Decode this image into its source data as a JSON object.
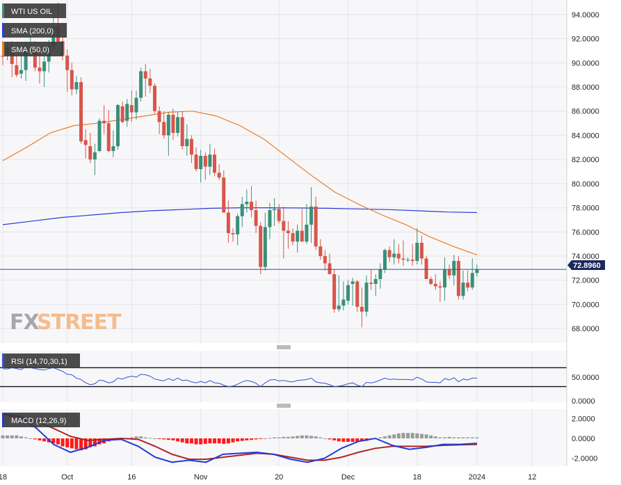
{
  "chart_data": [
    {
      "type": "candlestick",
      "title": "WTI US OIL",
      "legend": [
        "WTI US OIL",
        "SMA (200,0)",
        "SMA (50,0)"
      ],
      "watermark": {
        "fx": "FX",
        "street": "STREET"
      },
      "current_price": "72.8960",
      "ylim": [
        66.8,
        95.2
      ],
      "yticks": [
        "68.0000",
        "70.0000",
        "72.0000",
        "74.0000",
        "76.0000",
        "78.0000",
        "80.0000",
        "82.0000",
        "84.0000",
        "86.0000",
        "88.0000",
        "90.0000",
        "92.0000",
        "94.0000"
      ],
      "ytick_values": [
        68,
        70,
        72,
        74,
        76,
        78,
        80,
        82,
        84,
        86,
        88,
        90,
        92,
        94
      ],
      "x_labels": [
        "18",
        "Oct",
        "16",
        "Nov",
        "20",
        "Dec",
        "18",
        "2024",
        "12"
      ],
      "x_label_index": [
        0,
        14,
        28,
        43,
        60,
        75,
        90,
        103,
        115
      ],
      "ohlc": [
        [
          90.6,
          91.8,
          89.8,
          90.5
        ],
        [
          90.7,
          91.6,
          90.2,
          91.3
        ],
        [
          90.8,
          91.8,
          88.8,
          89.9
        ],
        [
          89.8,
          90.6,
          88.8,
          89.0
        ],
        [
          89.1,
          90.9,
          88.7,
          89.4
        ],
        [
          89.4,
          91.7,
          88.5,
          90.9
        ],
        [
          90.9,
          92.2,
          90.6,
          91.0
        ],
        [
          91.0,
          91.8,
          89.3,
          89.6
        ],
        [
          89.6,
          90.8,
          88.3,
          89.3
        ],
        [
          89.3,
          90.6,
          88.0,
          90.1
        ],
        [
          90.1,
          91.9,
          89.2,
          91.4
        ],
        [
          91.4,
          93.9,
          91.0,
          93.0
        ],
        [
          93.0,
          95.0,
          91.6,
          91.7
        ],
        [
          91.8,
          92.2,
          90.2,
          90.6
        ],
        [
          90.6,
          91.1,
          87.6,
          89.4
        ],
        [
          89.4,
          90.0,
          87.3,
          87.8
        ],
        [
          87.8,
          88.9,
          87.4,
          88.4
        ],
        [
          88.4,
          88.8,
          83.3,
          83.5
        ],
        [
          83.6,
          84.5,
          82.1,
          83.2
        ],
        [
          83.1,
          84.2,
          81.7,
          82.0
        ],
        [
          82.0,
          83.3,
          80.7,
          82.6
        ],
        [
          82.7,
          85.4,
          82.6,
          85.2
        ],
        [
          85.2,
          86.5,
          84.1,
          85.0
        ],
        [
          85.0,
          86.1,
          82.6,
          82.7
        ],
        [
          82.7,
          84.4,
          82.2,
          83.1
        ],
        [
          83.1,
          86.6,
          82.8,
          86.5
        ],
        [
          86.4,
          86.8,
          85.0,
          85.1
        ],
        [
          85.2,
          87.0,
          84.7,
          86.6
        ],
        [
          86.5,
          87.7,
          85.1,
          85.9
        ],
        [
          85.9,
          87.7,
          85.3,
          87.1
        ],
        [
          87.1,
          89.6,
          86.8,
          89.3
        ],
        [
          89.3,
          89.9,
          87.2,
          88.7
        ],
        [
          88.7,
          89.5,
          87.5,
          88.1
        ],
        [
          88.1,
          88.3,
          85.8,
          86.0
        ],
        [
          86.0,
          86.4,
          84.1,
          85.1
        ],
        [
          85.1,
          86.0,
          83.7,
          84.0
        ],
        [
          84.0,
          85.9,
          82.3,
          85.7
        ],
        [
          85.7,
          86.2,
          83.6,
          84.2
        ],
        [
          84.2,
          85.9,
          83.9,
          85.5
        ],
        [
          85.5,
          86.0,
          82.8,
          83.1
        ],
        [
          83.1,
          84.9,
          82.3,
          83.7
        ],
        [
          83.7,
          84.0,
          81.7,
          82.4
        ],
        [
          82.4,
          83.0,
          81.0,
          81.2
        ],
        [
          81.2,
          82.8,
          80.1,
          82.3
        ],
        [
          82.3,
          82.6,
          80.3,
          81.4
        ],
        [
          81.4,
          83.3,
          80.7,
          82.4
        ],
        [
          82.4,
          82.9,
          80.6,
          80.9
        ],
        [
          80.9,
          81.6,
          80.3,
          80.5
        ],
        [
          80.5,
          81.1,
          77.6,
          77.6
        ],
        [
          77.6,
          78.6,
          75.1,
          75.9
        ],
        [
          75.9,
          76.3,
          75.2,
          75.8
        ],
        [
          75.8,
          77.5,
          74.9,
          77.3
        ],
        [
          77.3,
          78.9,
          76.4,
          78.3
        ],
        [
          78.3,
          79.5,
          77.6,
          78.5
        ],
        [
          78.5,
          79.8,
          77.2,
          77.8
        ],
        [
          77.8,
          78.6,
          75.9,
          76.5
        ],
        [
          76.5,
          76.8,
          72.5,
          73.1
        ],
        [
          73.1,
          77.6,
          72.8,
          76.4
        ],
        [
          76.4,
          78.4,
          75.4,
          77.8
        ],
        [
          77.8,
          78.8,
          76.5,
          77.9
        ],
        [
          77.9,
          78.3,
          76.7,
          76.9
        ],
        [
          76.9,
          78.1,
          73.8,
          76.1
        ],
        [
          76.1,
          76.9,
          74.6,
          75.9
        ],
        [
          75.9,
          76.3,
          74.9,
          75.2
        ],
        [
          75.2,
          76.6,
          74.3,
          76.1
        ],
        [
          76.1,
          77.9,
          75.3,
          75.2
        ],
        [
          75.2,
          78.3,
          75.0,
          76.6
        ],
        [
          76.6,
          79.7,
          75.1,
          78.1
        ],
        [
          78.1,
          78.9,
          74.5,
          74.8
        ],
        [
          74.8,
          75.4,
          73.7,
          74.0
        ],
        [
          74.0,
          74.5,
          72.8,
          73.4
        ],
        [
          73.4,
          74.2,
          72.5,
          72.5
        ],
        [
          72.5,
          72.9,
          69.3,
          69.6
        ],
        [
          69.6,
          72.4,
          69.4,
          69.9
        ],
        [
          69.9,
          71.9,
          69.5,
          70.4
        ],
        [
          70.3,
          72.0,
          70.0,
          71.6
        ],
        [
          71.7,
          72.2,
          69.9,
          71.9
        ],
        [
          71.9,
          72.0,
          69.4,
          69.8
        ],
        [
          69.8,
          71.4,
          68.1,
          69.4
        ],
        [
          69.4,
          72.4,
          69.0,
          71.8
        ],
        [
          71.8,
          72.9,
          71.2,
          71.7
        ],
        [
          71.7,
          72.5,
          70.7,
          72.1
        ],
        [
          72.1,
          73.4,
          71.3,
          72.9
        ],
        [
          72.9,
          74.6,
          72.6,
          74.5
        ],
        [
          74.5,
          74.8,
          73.5,
          73.9
        ],
        [
          73.9,
          75.4,
          73.3,
          74.2
        ],
        [
          74.2,
          75.0,
          73.4,
          73.8
        ],
        [
          73.8,
          75.3,
          73.2,
          73.7
        ],
        [
          73.7,
          73.9,
          73.5,
          73.7
        ],
        [
          73.7,
          75.0,
          73.2,
          73.6
        ],
        [
          73.6,
          76.3,
          73.3,
          75.1
        ],
        [
          75.1,
          75.7,
          73.3,
          73.8
        ],
        [
          73.8,
          74.0,
          72.1,
          72.1
        ],
        [
          72.1,
          72.3,
          71.6,
          71.7
        ],
        [
          71.7,
          72.5,
          71.2,
          71.5
        ],
        [
          71.5,
          71.9,
          70.2,
          71.4
        ],
        [
          71.4,
          73.9,
          70.3,
          72.9
        ],
        [
          72.9,
          73.3,
          72.1,
          72.4
        ],
        [
          72.4,
          74.1,
          71.6,
          73.6
        ],
        [
          73.6,
          74.0,
          70.4,
          70.7
        ],
        [
          70.7,
          72.8,
          70.4,
          71.8
        ],
        [
          71.8,
          72.8,
          71.1,
          71.4
        ],
        [
          71.4,
          73.8,
          71.2,
          72.6
        ],
        [
          72.6,
          73.3,
          72.3,
          72.9
        ]
      ],
      "sma200": [
        76.6,
        76.9,
        77.2,
        77.4,
        77.6,
        77.75,
        77.85,
        77.95,
        78.0,
        78.0,
        77.98,
        77.95,
        77.9,
        77.85,
        77.75,
        77.65,
        77.6
      ],
      "sma50": [
        81.9,
        83.0,
        84.2,
        84.8,
        85.0,
        85.3,
        85.6,
        85.9,
        86.0,
        85.6,
        84.8,
        83.7,
        82.2,
        80.7,
        79.3,
        78.3,
        77.4,
        76.6,
        75.6,
        74.8,
        74.1
      ],
      "rsi": {
        "label": "RSI (14,70,30,1)",
        "yticks": [
          "50.0000",
          "0.0000"
        ],
        "levels": [
          70,
          30
        ],
        "ylim": [
          0,
          100
        ],
        "values": [
          68,
          67,
          70,
          68,
          66,
          72,
          70,
          68,
          66,
          65,
          68,
          70,
          66,
          62,
          56,
          55,
          48,
          45,
          38,
          34,
          36,
          44,
          42,
          38,
          40,
          48,
          46,
          50,
          52,
          50,
          56,
          55,
          52,
          46,
          44,
          42,
          47,
          43,
          48,
          43,
          44,
          40,
          38,
          41,
          38,
          43,
          38,
          37,
          33,
          30,
          31,
          35,
          40,
          43,
          41,
          37,
          30,
          38,
          44,
          45,
          42,
          43,
          41,
          40,
          43,
          44,
          45,
          48,
          40,
          38,
          37,
          34,
          30,
          31,
          33,
          36,
          38,
          33,
          30,
          39,
          38,
          40,
          44,
          48,
          45,
          46,
          45,
          45,
          45,
          44,
          50,
          46,
          40,
          39,
          39,
          38,
          47,
          44,
          49,
          40,
          46,
          44,
          48,
          48
        ]
      },
      "macd": {
        "label": "MACD (12,26,9)",
        "yticks": [
          "2.0000",
          "0.0000",
          "-2.0000"
        ],
        "ylim": [
          -2.8,
          2.8
        ],
        "macd_line": [
          2.5,
          2.2,
          1.0,
          -0.6,
          -1.4,
          -0.9,
          -0.2,
          -0.1,
          -0.8,
          -1.9,
          -2.4,
          -2.2,
          -2.4,
          -1.6,
          -1.5,
          -1.4,
          -1.6,
          -2.1,
          -2.4,
          -2.0,
          -1.0,
          -0.3,
          0.0,
          -0.7,
          -1.1,
          -0.9,
          -0.6,
          -0.6,
          -0.5
        ],
        "signal_line": [
          2.3,
          2.2,
          1.7,
          1.0,
          0.2,
          -0.2,
          -0.1,
          0.0,
          -0.1,
          -0.8,
          -1.6,
          -2.1,
          -2.1,
          -1.9,
          -1.7,
          -1.5,
          -1.6,
          -1.9,
          -2.2,
          -2.2,
          -1.9,
          -1.4,
          -1.0,
          -0.8,
          -0.8,
          -0.8,
          -0.7,
          -0.65,
          -0.6
        ],
        "histogram": [
          0.3,
          0.3,
          0.3,
          0.3,
          0.2,
          0.1,
          0.0,
          -0.1,
          -0.2,
          -0.3,
          -0.4,
          -0.5,
          -0.6,
          -0.8,
          -0.9,
          -1.0,
          -1.1,
          -1.2,
          -1.1,
          -0.9,
          -0.8,
          -0.6,
          -0.5,
          -0.3,
          -0.2,
          -0.1,
          -0.05,
          0.0,
          0.1,
          0.2,
          0.2,
          0.1,
          0.05,
          0.0,
          -0.05,
          -0.1,
          -0.15,
          -0.2,
          -0.3,
          -0.4,
          -0.5,
          -0.5,
          -0.6,
          -0.6,
          -0.55,
          -0.5,
          -0.5,
          -0.5,
          -0.55,
          -0.5,
          -0.4,
          -0.3,
          -0.25,
          -0.2,
          -0.15,
          -0.1,
          -0.05,
          0.0,
          0.05,
          0.1,
          0.1,
          0.15,
          0.15,
          0.2,
          0.25,
          0.3,
          0.3,
          0.25,
          0.2,
          0.1,
          0.0,
          -0.1,
          -0.2,
          -0.3,
          -0.35,
          -0.35,
          -0.35,
          -0.35,
          -0.3,
          -0.25,
          -0.1,
          0.0,
          0.1,
          0.2,
          0.3,
          0.4,
          0.5,
          0.55,
          0.55,
          0.55,
          0.5,
          0.45,
          0.4,
          0.3,
          0.2,
          0.1,
          0.1,
          0.15,
          0.1,
          0.1,
          0.1,
          0.1,
          0.1,
          0.1
        ]
      }
    }
  ],
  "colors": {
    "up": "#3a8f78",
    "down": "#d9554a",
    "sma200": "#2a3bd6",
    "sma50": "#ee7a22",
    "rsi_line": "#3451d1",
    "macd_line": "#1f3bd6",
    "signal_line": "#b52222",
    "hist_pos": "#9a9a9a",
    "hist_neg": "#ff1a1a",
    "price_line": "#3d4a8c",
    "price_tag": "#1c2a5a",
    "legend_bg": "#3c3c3c",
    "panel_bg": "#f7f7f9",
    "grid": "#e4e4ea",
    "watermark_fx": "#9b9b9b",
    "watermark_street": "#f4b27b"
  }
}
